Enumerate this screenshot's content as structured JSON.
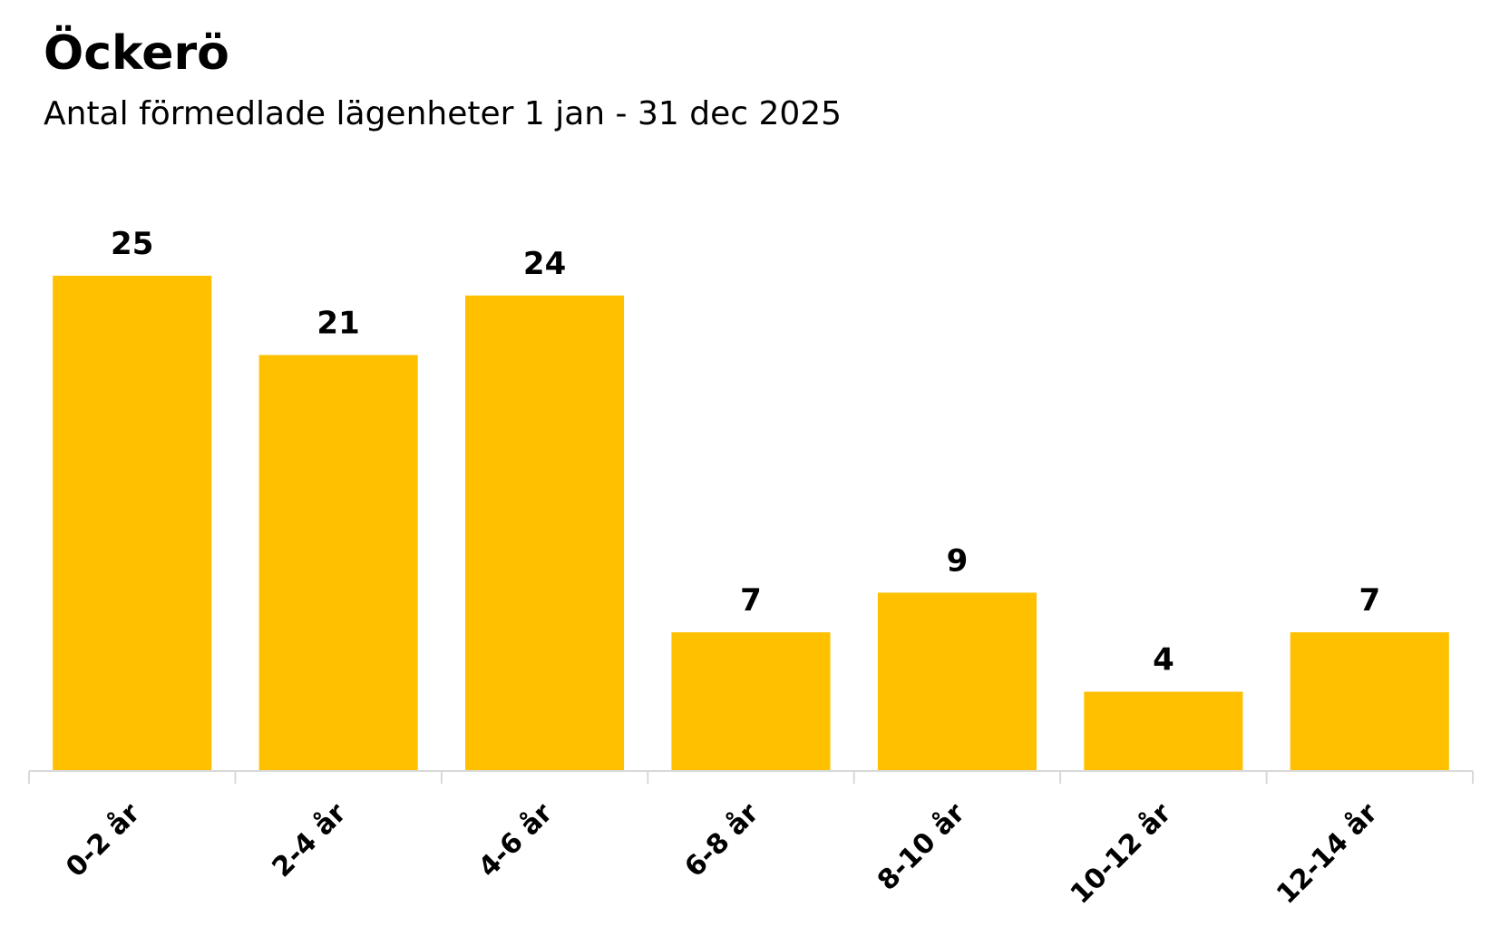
{
  "chart_data": {
    "type": "bar",
    "title": "Öckerö",
    "subtitle": "Antal förmedlade lägenheter 1 jan - 31 dec 2025",
    "categories": [
      "0-2 år",
      "2-4 år",
      "4-6 år",
      "6-8 år",
      "8-10 år",
      "10-12 år",
      "12-14 år"
    ],
    "values": [
      25,
      21,
      24,
      7,
      9,
      4,
      7
    ],
    "xlabel": "",
    "ylabel": "",
    "ylim": [
      0,
      25
    ],
    "grid": false,
    "legend": "none",
    "data_labels": true,
    "colors": {
      "bar": "#FFC000",
      "axis": "#D9D9D9",
      "text": "#000000"
    }
  }
}
